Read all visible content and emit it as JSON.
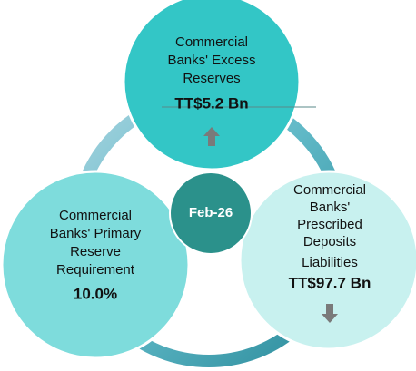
{
  "center": {
    "label": "Feb-26"
  },
  "nodes": [
    {
      "lines": [
        "Commercial",
        "Banks' Excess",
        "Reserves"
      ],
      "value": "TT$5.2 Bn"
    },
    {
      "lines": [
        "Commercial",
        "Banks' Primary",
        "Reserve",
        "Requirement"
      ],
      "value": "10.0%"
    },
    {
      "lines": [
        "Commercial",
        "Banks'",
        "Prescribed",
        "Deposits",
        "Liabilities"
      ],
      "value": "TT$97.7 Bn"
    }
  ]
}
